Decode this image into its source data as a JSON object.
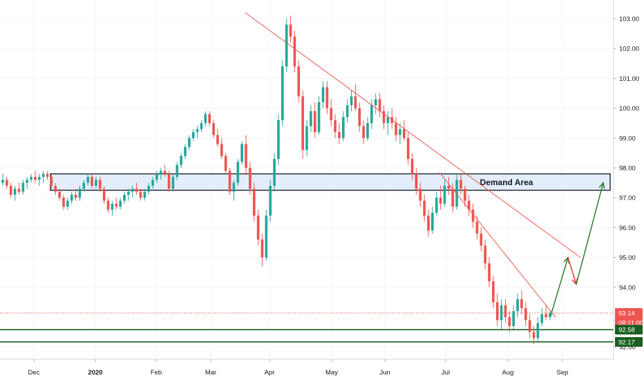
{
  "chart_data": {
    "type": "candlestick",
    "y_ticks": [
      "103.00",
      "102.00",
      "101.00",
      "100.00",
      "99.00",
      "98.00",
      "97.00",
      "96.00",
      "95.00",
      "94.00",
      "92.00"
    ],
    "ylim": [
      91.85,
      103.55
    ],
    "x_ticks": [
      "Dec",
      "2020",
      "Feb",
      "Mar",
      "Apr",
      "May",
      "Jun",
      "Jul",
      "Aug",
      "Sep"
    ],
    "price_labels": {
      "current": "93.14",
      "countdown": "08:11:00",
      "support_upper": "92.58",
      "support_lower": "92.17"
    },
    "annotations": {
      "zone_label": "Demand Area",
      "zone_range": [
        97.25,
        97.8
      ]
    },
    "candles": [
      [
        97.5,
        97.8,
        97.4,
        97.6
      ],
      [
        97.6,
        97.7,
        97.3,
        97.4
      ],
      [
        97.4,
        97.5,
        97.0,
        97.1
      ],
      [
        97.1,
        97.4,
        96.9,
        97.3
      ],
      [
        97.3,
        97.5,
        97.1,
        97.2
      ],
      [
        97.2,
        97.6,
        97.1,
        97.5
      ],
      [
        97.5,
        97.7,
        97.3,
        97.6
      ],
      [
        97.6,
        97.8,
        97.5,
        97.7
      ],
      [
        97.7,
        97.9,
        97.5,
        97.6
      ],
      [
        97.6,
        97.8,
        97.4,
        97.7
      ],
      [
        97.7,
        97.9,
        97.5,
        97.8
      ],
      [
        97.8,
        97.9,
        97.6,
        97.7
      ],
      [
        97.7,
        97.8,
        97.3,
        97.4
      ],
      [
        97.4,
        97.5,
        97.1,
        97.2
      ],
      [
        97.2,
        97.3,
        96.9,
        97.0
      ],
      [
        97.0,
        97.1,
        96.6,
        96.7
      ],
      [
        96.7,
        97.0,
        96.6,
        96.9
      ],
      [
        96.9,
        97.2,
        96.8,
        97.1
      ],
      [
        97.1,
        97.3,
        96.9,
        97.0
      ],
      [
        97.0,
        97.4,
        96.9,
        97.3
      ],
      [
        97.3,
        97.6,
        97.2,
        97.5
      ],
      [
        97.5,
        97.8,
        97.4,
        97.7
      ],
      [
        97.7,
        97.8,
        97.3,
        97.4
      ],
      [
        97.4,
        97.7,
        97.3,
        97.6
      ],
      [
        97.6,
        97.7,
        97.2,
        97.3
      ],
      [
        97.3,
        97.4,
        96.8,
        96.9
      ],
      [
        96.9,
        97.0,
        96.5,
        96.6
      ],
      [
        96.6,
        96.9,
        96.4,
        96.8
      ],
      [
        96.8,
        97.0,
        96.6,
        96.7
      ],
      [
        96.7,
        97.0,
        96.6,
        96.9
      ],
      [
        96.9,
        97.2,
        96.8,
        97.1
      ],
      [
        97.1,
        97.3,
        96.9,
        97.2
      ],
      [
        97.2,
        97.4,
        97.0,
        97.3
      ],
      [
        97.3,
        97.5,
        97.1,
        97.2
      ],
      [
        97.2,
        97.3,
        96.9,
        97.0
      ],
      [
        97.0,
        97.3,
        96.9,
        97.2
      ],
      [
        97.2,
        97.5,
        97.1,
        97.4
      ],
      [
        97.4,
        97.7,
        97.3,
        97.6
      ],
      [
        97.6,
        97.9,
        97.5,
        97.8
      ],
      [
        97.8,
        98.0,
        97.6,
        97.9
      ],
      [
        97.9,
        98.1,
        97.7,
        97.8
      ],
      [
        97.8,
        97.9,
        97.2,
        97.3
      ],
      [
        97.3,
        97.8,
        97.2,
        97.7
      ],
      [
        97.7,
        98.2,
        97.6,
        98.1
      ],
      [
        98.1,
        98.5,
        98.0,
        98.4
      ],
      [
        98.4,
        98.8,
        98.3,
        98.7
      ],
      [
        98.7,
        99.1,
        98.6,
        99.0
      ],
      [
        99.0,
        99.3,
        98.9,
        99.2
      ],
      [
        99.2,
        99.4,
        99.0,
        99.3
      ],
      [
        99.3,
        99.6,
        99.2,
        99.5
      ],
      [
        99.5,
        99.9,
        99.4,
        99.8
      ],
      [
        99.8,
        99.9,
        99.4,
        99.5
      ],
      [
        99.5,
        99.6,
        99.0,
        99.1
      ],
      [
        99.1,
        99.3,
        98.7,
        98.8
      ],
      [
        98.8,
        99.0,
        98.3,
        98.4
      ],
      [
        98.4,
        98.5,
        97.8,
        97.9
      ],
      [
        97.9,
        98.0,
        97.1,
        97.2
      ],
      [
        97.2,
        97.6,
        96.9,
        97.5
      ],
      [
        97.5,
        98.3,
        97.4,
        98.2
      ],
      [
        98.2,
        98.9,
        98.1,
        98.8
      ],
      [
        98.8,
        99.1,
        97.8,
        98.0
      ],
      [
        98.0,
        98.2,
        97.1,
        97.3
      ],
      [
        97.3,
        97.5,
        96.2,
        96.4
      ],
      [
        96.4,
        96.6,
        95.4,
        95.6
      ],
      [
        95.6,
        95.8,
        94.7,
        95.0
      ],
      [
        95.0,
        96.6,
        94.9,
        96.4
      ],
      [
        96.4,
        97.6,
        96.2,
        97.4
      ],
      [
        97.4,
        98.5,
        97.2,
        98.3
      ],
      [
        98.3,
        99.8,
        98.1,
        99.6
      ],
      [
        99.6,
        101.6,
        99.4,
        101.4
      ],
      [
        101.4,
        103.0,
        101.2,
        102.8
      ],
      [
        102.8,
        103.1,
        102.2,
        102.4
      ],
      [
        102.4,
        102.6,
        101.2,
        101.4
      ],
      [
        101.4,
        101.6,
        100.2,
        100.4
      ],
      [
        100.4,
        100.6,
        98.3,
        98.6
      ],
      [
        98.6,
        99.6,
        98.4,
        99.4
      ],
      [
        99.4,
        100.1,
        99.2,
        99.9
      ],
      [
        99.9,
        100.2,
        99.0,
        99.2
      ],
      [
        99.2,
        100.4,
        99.1,
        100.2
      ],
      [
        100.2,
        100.9,
        100.0,
        100.7
      ],
      [
        100.7,
        100.9,
        99.8,
        100.0
      ],
      [
        100.0,
        100.3,
        99.4,
        99.6
      ],
      [
        99.6,
        99.8,
        99.0,
        99.2
      ],
      [
        99.2,
        99.5,
        98.8,
        99.0
      ],
      [
        99.0,
        99.9,
        98.9,
        99.7
      ],
      [
        99.7,
        100.3,
        99.5,
        100.1
      ],
      [
        100.1,
        100.6,
        99.9,
        100.4
      ],
      [
        100.4,
        100.8,
        99.9,
        100.0
      ],
      [
        100.0,
        100.2,
        99.2,
        99.4
      ],
      [
        99.4,
        99.6,
        98.8,
        99.0
      ],
      [
        99.0,
        99.7,
        98.9,
        99.5
      ],
      [
        99.5,
        100.3,
        99.3,
        100.1
      ],
      [
        100.1,
        100.5,
        99.8,
        100.3
      ],
      [
        100.3,
        100.5,
        99.7,
        99.9
      ],
      [
        99.9,
        100.1,
        99.3,
        99.5
      ],
      [
        99.5,
        99.9,
        99.1,
        99.7
      ],
      [
        99.7,
        100.0,
        99.3,
        99.5
      ],
      [
        99.5,
        99.7,
        98.9,
        99.1
      ],
      [
        99.1,
        99.5,
        98.8,
        99.3
      ],
      [
        99.3,
        99.6,
        98.9,
        99.0
      ],
      [
        99.0,
        99.2,
        98.1,
        98.3
      ],
      [
        98.3,
        98.5,
        97.6,
        97.8
      ],
      [
        97.8,
        98.0,
        97.1,
        97.3
      ],
      [
        97.3,
        97.5,
        96.7,
        96.9
      ],
      [
        96.9,
        97.1,
        96.2,
        96.4
      ],
      [
        96.4,
        96.6,
        95.7,
        95.9
      ],
      [
        95.9,
        96.7,
        95.8,
        96.5
      ],
      [
        96.5,
        97.2,
        96.4,
        97.0
      ],
      [
        97.0,
        97.4,
        96.6,
        96.8
      ],
      [
        96.8,
        97.6,
        96.7,
        97.4
      ],
      [
        97.4,
        97.7,
        97.1,
        97.3
      ],
      [
        97.3,
        97.5,
        96.5,
        96.7
      ],
      [
        96.7,
        97.8,
        96.6,
        97.6
      ],
      [
        97.6,
        97.8,
        97.1,
        97.3
      ],
      [
        97.3,
        97.4,
        96.7,
        96.9
      ],
      [
        96.9,
        97.1,
        96.4,
        96.6
      ],
      [
        96.6,
        96.8,
        96.0,
        96.2
      ],
      [
        96.2,
        96.4,
        95.6,
        95.8
      ],
      [
        95.8,
        96.0,
        95.2,
        95.4
      ],
      [
        95.4,
        95.6,
        94.6,
        94.8
      ],
      [
        94.8,
        95.0,
        94.0,
        94.2
      ],
      [
        94.2,
        94.4,
        93.3,
        93.5
      ],
      [
        93.5,
        93.8,
        92.7,
        92.9
      ],
      [
        92.9,
        93.6,
        92.6,
        93.4
      ],
      [
        93.4,
        93.6,
        92.8,
        93.0
      ],
      [
        93.0,
        93.2,
        92.5,
        92.7
      ],
      [
        92.7,
        93.4,
        92.6,
        93.2
      ],
      [
        93.2,
        93.8,
        93.0,
        93.6
      ],
      [
        93.6,
        93.9,
        93.1,
        93.3
      ],
      [
        93.3,
        93.5,
        92.7,
        92.9
      ],
      [
        92.9,
        93.1,
        92.3,
        92.5
      ],
      [
        92.5,
        92.7,
        92.1,
        92.3
      ],
      [
        92.3,
        93.0,
        92.2,
        92.8
      ],
      [
        92.8,
        93.3,
        92.7,
        93.1
      ],
      [
        93.1,
        93.4,
        92.9,
        93.0
      ],
      [
        93.0,
        93.2,
        92.9,
        93.14
      ]
    ]
  }
}
